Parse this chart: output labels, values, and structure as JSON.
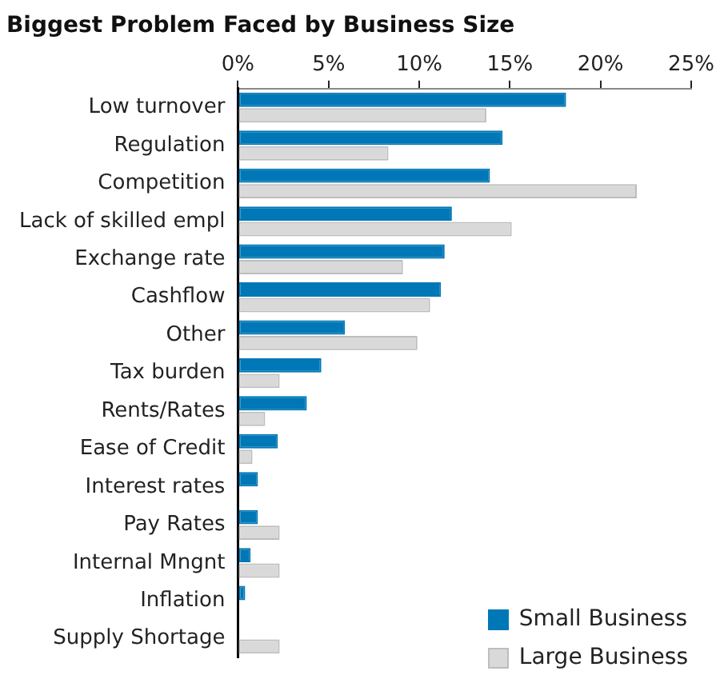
{
  "chart_data": {
    "type": "bar",
    "orientation": "horizontal",
    "title": "Biggest Problem Faced by Business Size",
    "categories": [
      "Low turnover",
      "Regulation",
      "Competition",
      "Lack of skilled empl",
      "Exchange rate",
      "Cashflow",
      "Other",
      "Tax burden",
      "Rents/Rates",
      "Ease of Credit",
      "Interest rates",
      "Pay Rates",
      "Internal Mngnt",
      "Inflation",
      "Supply Shortage"
    ],
    "series": [
      {
        "name": "Small Business",
        "color": "#0077b6",
        "values": [
          18.1,
          14.6,
          13.9,
          11.8,
          11.4,
          11.2,
          5.9,
          4.6,
          3.8,
          2.2,
          1.1,
          1.1,
          0.7,
          0.4,
          0
        ]
      },
      {
        "name": "Large Business",
        "color": "#d9d9d9",
        "values": [
          13.7,
          8.3,
          22.0,
          15.1,
          9.1,
          10.6,
          9.9,
          2.3,
          1.5,
          0.8,
          0,
          2.3,
          2.3,
          0,
          2.3
        ]
      }
    ],
    "xlim": [
      0,
      25
    ],
    "xticks": [
      {
        "value": 0,
        "label": "0%"
      },
      {
        "value": 5,
        "label": "5%"
      },
      {
        "value": 10,
        "label": "10%"
      },
      {
        "value": 15,
        "label": "15%"
      },
      {
        "value": 20,
        "label": "20%"
      },
      {
        "value": 25,
        "label": "25%"
      }
    ],
    "grid": false,
    "legend": "bottom right"
  }
}
